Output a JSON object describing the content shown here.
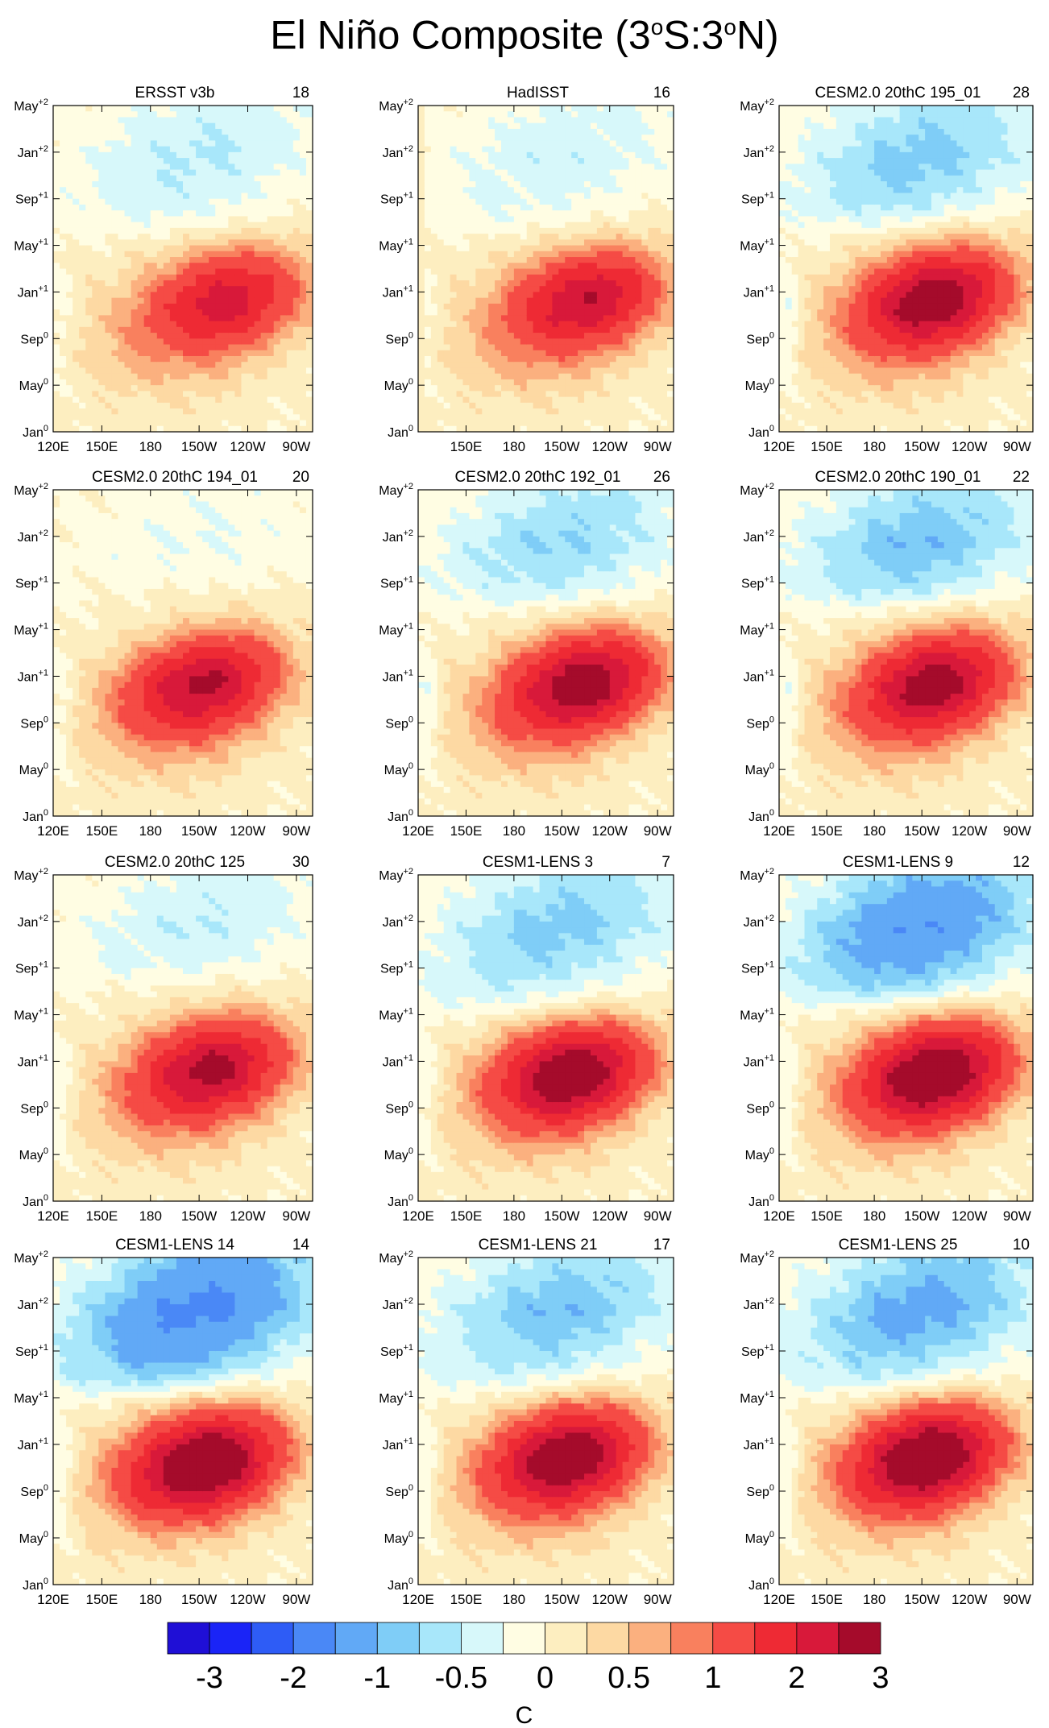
{
  "figure": {
    "title_main": "El Niño Composite (3",
    "title_deg1": "o",
    "title_mid": "S:3",
    "title_deg2": "o",
    "title_end": "N)"
  },
  "colors": {
    "contour_line": "#6b6b6b",
    "levels": [
      "#1f0fd6",
      "#1a24f7",
      "#2e5cf6",
      "#4a88f6",
      "#61a9f6",
      "#7fcdf7",
      "#a8e7fa",
      "#d7f8fa",
      "#fffde3",
      "#fdeec0",
      "#fdd9a3",
      "#fbb07f",
      "#f9805e",
      "#f54b45",
      "#ee2a34",
      "#d8193a",
      "#a50b2b"
    ]
  },
  "chart_data": {
    "type": "heatmap",
    "description_axes": "Hovmöller: longitude (x) vs time (y), SST anomaly",
    "xlabel_ticks": [
      "120E",
      "150E",
      "180",
      "150W",
      "120W",
      "90W"
    ],
    "x_tick_lon": [
      120,
      150,
      180,
      210,
      240,
      270
    ],
    "xlim": [
      120,
      280
    ],
    "ylabel_ticks": [
      {
        "base": "Jan",
        "sup": "0"
      },
      {
        "base": "May",
        "sup": "0"
      },
      {
        "base": "Sep",
        "sup": "0"
      },
      {
        "base": "Jan",
        "sup": "+1"
      },
      {
        "base": "May",
        "sup": "+1"
      },
      {
        "base": "Sep",
        "sup": "+1"
      },
      {
        "base": "Jan",
        "sup": "+2"
      },
      {
        "base": "May",
        "sup": "+2"
      }
    ],
    "y_tick_month": [
      0,
      4,
      8,
      12,
      16,
      20,
      24,
      28
    ],
    "ylim": [
      0,
      28
    ],
    "panels": [
      {
        "title": "ERSST v3b",
        "count": "18",
        "xmin": 120,
        "peak": 2.0,
        "lon": 230,
        "t": 11.5,
        "slr": 0.45,
        "neg": 0.55,
        "trans": 17,
        "hide120": false
      },
      {
        "title": "HadISST",
        "count": "16",
        "xmin": 125,
        "peak": 2.2,
        "lon": 228,
        "t": 11.5,
        "slr": 0.4,
        "neg": 0.45,
        "trans": 17,
        "hide120": true
      },
      {
        "title": "CESM2.0 20thC 195_01",
        "count": "28",
        "xmin": 120,
        "peak": 2.7,
        "lon": 220,
        "t": 11.5,
        "slr": 0.8,
        "neg": 0.9,
        "trans": 17.5,
        "hide120": false
      },
      {
        "title": "CESM2.0 20thC 194_01",
        "count": "20",
        "xmin": 120,
        "peak": 2.3,
        "lon": 215,
        "t": 11.5,
        "slr": 0.55,
        "neg": 0.25,
        "trans": 20,
        "hide120": false
      },
      {
        "title": "CESM2.0 20thC 192_01",
        "count": "26",
        "xmin": 120,
        "peak": 2.7,
        "lon": 225,
        "t": 11.5,
        "slr": 0.8,
        "neg": 0.8,
        "trans": 18,
        "hide120": false
      },
      {
        "title": "CESM2.0 20thC 190_01",
        "count": "22",
        "xmin": 120,
        "peak": 2.6,
        "lon": 220,
        "t": 11.5,
        "slr": 0.8,
        "neg": 1.0,
        "trans": 18,
        "hide120": false
      },
      {
        "title": "CESM2.0 20thC 125",
        "count": "30",
        "xmin": 120,
        "peak": 2.4,
        "lon": 220,
        "t": 11.5,
        "slr": 0.6,
        "neg": 0.5,
        "trans": 19,
        "hide120": false
      },
      {
        "title": "CESM1-LENS 3",
        "count": "7",
        "xmin": 120,
        "peak": 2.8,
        "lon": 218,
        "t": 11.0,
        "slr": 0.6,
        "neg": 0.9,
        "trans": 16,
        "hide120": false
      },
      {
        "title": "CESM1-LENS 9",
        "count": "12",
        "xmin": 120,
        "peak": 3.0,
        "lon": 220,
        "t": 11.0,
        "slr": 0.7,
        "neg": 1.5,
        "trans": 17,
        "hide120": false
      },
      {
        "title": "CESM1-LENS 14",
        "count": "14",
        "xmin": 120,
        "peak": 3.0,
        "lon": 215,
        "t": 10.5,
        "slr": 0.7,
        "neg": 1.7,
        "trans": 16.5,
        "hide120": false
      },
      {
        "title": "CESM1-LENS 21",
        "count": "17",
        "xmin": 120,
        "peak": 2.8,
        "lon": 215,
        "t": 11.0,
        "slr": 0.7,
        "neg": 1.0,
        "trans": 16.5,
        "hide120": false
      },
      {
        "title": "CESM1-LENS 25",
        "count": "10",
        "xmin": 120,
        "peak": 3.0,
        "lon": 215,
        "t": 11.0,
        "slr": 0.7,
        "neg": 1.2,
        "trans": 16.5,
        "hide120": false
      }
    ],
    "colorbar": {
      "levels": [
        -3,
        -2.5,
        -2,
        -1.5,
        -1,
        -0.75,
        -0.5,
        -0.25,
        0,
        0.25,
        0.5,
        0.75,
        1,
        1.5,
        2,
        2.5,
        3
      ],
      "label_text": [
        "-3",
        "-2",
        "-1",
        "-0.5",
        "0",
        "0.5",
        "1",
        "2",
        "3"
      ],
      "unit": "C"
    }
  }
}
